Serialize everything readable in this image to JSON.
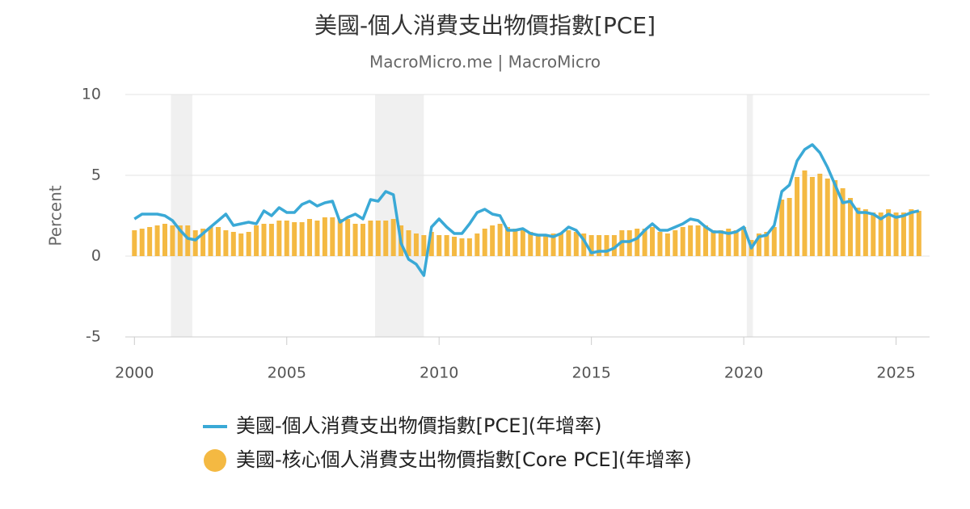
{
  "chart_data": {
    "type": "bar-line",
    "title": "美國-個人消費支出物價指數[PCE]",
    "subtitle": "MacroMicro.me | MacroMicro",
    "y_label": "Percent",
    "xlim": [
      1999.7,
      2026.1
    ],
    "xticks": [
      2000,
      2005,
      2010,
      2015,
      2020,
      2025
    ],
    "ylim": [
      -5,
      10
    ],
    "yticks": [
      -5,
      0,
      5,
      10
    ],
    "grid": true,
    "recessions": [
      [
        2001.2,
        2001.9
      ],
      [
        2007.9,
        2009.5
      ],
      [
        2020.1,
        2020.3
      ]
    ],
    "x": [
      2000,
      2000.25,
      2000.5,
      2000.75,
      2001,
      2001.25,
      2001.5,
      2001.75,
      2002,
      2002.25,
      2002.5,
      2002.75,
      2003,
      2003.25,
      2003.5,
      2003.75,
      2004,
      2004.25,
      2004.5,
      2004.75,
      2005,
      2005.25,
      2005.5,
      2005.75,
      2006,
      2006.25,
      2006.5,
      2006.75,
      2007,
      2007.25,
      2007.5,
      2007.75,
      2008,
      2008.25,
      2008.5,
      2008.75,
      2009,
      2009.25,
      2009.5,
      2009.75,
      2010,
      2010.25,
      2010.5,
      2010.75,
      2011,
      2011.25,
      2011.5,
      2011.75,
      2012,
      2012.25,
      2012.5,
      2012.75,
      2013,
      2013.25,
      2013.5,
      2013.75,
      2014,
      2014.25,
      2014.5,
      2014.75,
      2015,
      2015.25,
      2015.5,
      2015.75,
      2016,
      2016.25,
      2016.5,
      2016.75,
      2017,
      2017.25,
      2017.5,
      2017.75,
      2018,
      2018.25,
      2018.5,
      2018.75,
      2019,
      2019.25,
      2019.5,
      2019.75,
      2020,
      2020.25,
      2020.5,
      2020.75,
      2021,
      2021.25,
      2021.5,
      2021.75,
      2022,
      2022.25,
      2022.5,
      2022.75,
      2023,
      2023.25,
      2023.5,
      2023.75,
      2024,
      2024.25,
      2024.5,
      2024.75,
      2025,
      2025.25,
      2025.5,
      2025.75
    ],
    "series": [
      {
        "name": "美國-個人消費支出物價指數[PCE](年增率)",
        "kind": "line",
        "color": "#3aa9d6",
        "values": [
          2.3,
          2.6,
          2.6,
          2.6,
          2.5,
          2.2,
          1.6,
          1.1,
          1.0,
          1.4,
          1.8,
          2.2,
          2.6,
          1.9,
          2.0,
          2.1,
          2.0,
          2.8,
          2.5,
          3.0,
          2.7,
          2.7,
          3.2,
          3.4,
          3.1,
          3.3,
          3.4,
          2.1,
          2.4,
          2.6,
          2.3,
          3.5,
          3.4,
          4.0,
          3.8,
          0.8,
          -0.2,
          -0.5,
          -1.2,
          1.8,
          2.3,
          1.8,
          1.4,
          1.4,
          2.0,
          2.7,
          2.9,
          2.6,
          2.5,
          1.6,
          1.6,
          1.7,
          1.4,
          1.3,
          1.3,
          1.2,
          1.4,
          1.8,
          1.6,
          1.0,
          0.2,
          0.3,
          0.3,
          0.5,
          0.9,
          0.9,
          1.1,
          1.6,
          2.0,
          1.6,
          1.6,
          1.8,
          2.0,
          2.3,
          2.2,
          1.8,
          1.5,
          1.5,
          1.4,
          1.5,
          1.8,
          0.5,
          1.2,
          1.3,
          1.9,
          4.0,
          4.4,
          5.9,
          6.6,
          6.9,
          6.4,
          5.5,
          4.4,
          3.3,
          3.4,
          2.7,
          2.7,
          2.6,
          2.3,
          2.6,
          2.4,
          2.5,
          2.7,
          2.8
        ]
      },
      {
        "name": "美國-核心個人消費支出物價指數[Core PCE](年增率)",
        "kind": "bar",
        "color": "#f4b942",
        "values": [
          1.6,
          1.7,
          1.8,
          1.9,
          2.0,
          1.9,
          1.9,
          1.9,
          1.6,
          1.7,
          1.8,
          1.8,
          1.6,
          1.5,
          1.4,
          1.5,
          1.9,
          2.0,
          2.0,
          2.2,
          2.2,
          2.1,
          2.1,
          2.3,
          2.2,
          2.4,
          2.4,
          2.3,
          2.3,
          2.0,
          2.0,
          2.2,
          2.2,
          2.2,
          2.3,
          1.9,
          1.6,
          1.4,
          1.3,
          1.5,
          1.3,
          1.3,
          1.2,
          1.1,
          1.1,
          1.4,
          1.7,
          1.9,
          2.0,
          1.8,
          1.7,
          1.6,
          1.5,
          1.3,
          1.3,
          1.4,
          1.4,
          1.6,
          1.5,
          1.4,
          1.3,
          1.3,
          1.3,
          1.3,
          1.6,
          1.6,
          1.7,
          1.7,
          1.8,
          1.5,
          1.4,
          1.6,
          1.8,
          1.9,
          1.9,
          1.9,
          1.6,
          1.6,
          1.7,
          1.6,
          1.8,
          1.0,
          1.4,
          1.5,
          1.8,
          3.5,
          3.6,
          4.9,
          5.3,
          4.9,
          5.1,
          4.8,
          4.7,
          4.2,
          3.6,
          3.0,
          2.9,
          2.7,
          2.7,
          2.9,
          2.7,
          2.7,
          2.9,
          2.8
        ]
      }
    ]
  }
}
